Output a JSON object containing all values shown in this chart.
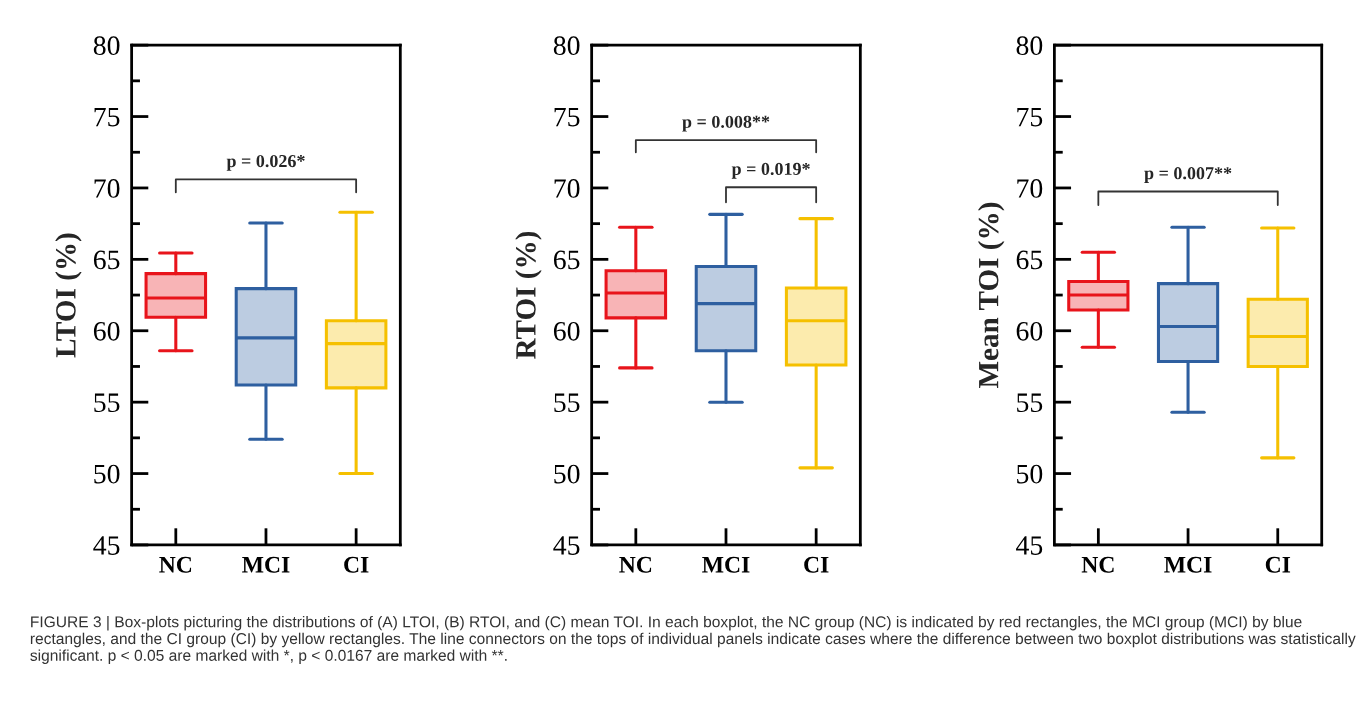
{
  "chart_data": [
    {
      "type": "box",
      "ylabel": "LTOI (%)",
      "categories": [
        "NC",
        "MCI",
        "CI"
      ],
      "colors": [
        "#e8141b",
        "#2e5fa0",
        "#f5c000"
      ],
      "boxes": [
        {
          "low": 58.6,
          "q1": 60.95,
          "median": 62.3,
          "q3": 64.0,
          "high": 65.45
        },
        {
          "low": 52.4,
          "q1": 56.2,
          "median": 59.5,
          "q3": 62.95,
          "high": 67.55
        },
        {
          "low": 50.0,
          "q1": 56.0,
          "median": 59.1,
          "q3": 60.7,
          "high": 68.3
        }
      ],
      "ylim": [
        45,
        80
      ],
      "yticks": [
        45,
        {
          "value": 47.5,
          "label": null
        },
        50,
        {
          "value": 52.5,
          "label": null
        },
        55,
        {
          "value": 57.5,
          "label": null
        },
        60,
        {
          "value": 62.5,
          "label": null
        },
        65,
        {
          "value": 67.5,
          "label": null
        },
        70,
        {
          "value": 72.5,
          "label": null
        },
        75,
        {
          "value": 77.5,
          "label": null
        },
        80
      ],
      "annotations": [
        "p = 0.026*"
      ]
    },
    {
      "type": "box",
      "ylabel": "RTOI (%)",
      "categories": [
        "NC",
        "MCI",
        "CI"
      ],
      "colors": [
        "#e8141b",
        "#2e5fa0",
        "#f5c000"
      ],
      "boxes": [
        {
          "low": 57.4,
          "q1": 60.9,
          "median": 62.65,
          "q3": 64.2,
          "high": 67.25
        },
        {
          "low": 55.0,
          "q1": 58.6,
          "median": 61.9,
          "q3": 64.5,
          "high": 68.15
        },
        {
          "low": 50.4,
          "q1": 57.6,
          "median": 60.7,
          "q3": 63.0,
          "high": 67.85
        }
      ],
      "ylim": [
        45,
        80
      ],
      "yticks": [
        45,
        {
          "value": 47.5,
          "label": null
        },
        50,
        {
          "value": 52.5,
          "label": null
        },
        55,
        {
          "value": 57.5,
          "label": null
        },
        60,
        {
          "value": 62.5,
          "label": null
        },
        65,
        {
          "value": 67.5,
          "label": null
        },
        70,
        {
          "value": 72.5,
          "label": null
        },
        75,
        {
          "value": 77.5,
          "label": null
        },
        80
      ],
      "annotations": [
        "p = 0.008**",
        "p = 0.019*"
      ]
    },
    {
      "type": "box",
      "ylabel": "Mean TOI (%)",
      "categories": [
        "NC",
        "MCI",
        "CI"
      ],
      "colors": [
        "#e8141b",
        "#2e5fa0",
        "#f5c000"
      ],
      "boxes": [
        {
          "low": 58.85,
          "q1": 61.45,
          "median": 62.5,
          "q3": 63.45,
          "high": 65.5
        },
        {
          "low": 54.3,
          "q1": 57.85,
          "median": 60.3,
          "q3": 63.3,
          "high": 67.25
        },
        {
          "low": 51.1,
          "q1": 57.5,
          "median": 59.6,
          "q3": 62.2,
          "high": 67.2
        }
      ],
      "ylim": [
        45,
        80
      ],
      "yticks": [
        45,
        {
          "value": 47.5,
          "label": null
        },
        50,
        {
          "value": 52.5,
          "label": null
        },
        55,
        {
          "value": 57.5,
          "label": null
        },
        60,
        {
          "value": 62.5,
          "label": null
        },
        65,
        {
          "value": 67.5,
          "label": null
        },
        70,
        {
          "value": 72.5,
          "label": null
        },
        75,
        {
          "value": 77.5,
          "label": null
        },
        80
      ],
      "annotations": [
        "p = 0.007**",
        "FIGURE 3 | Box-plots picturing the distributions of (A) LTOI, (B) RTOI, and (C) mean TOI. In each boxplot, the NC group (NC) is indicated by red rectangles, the MCI group (MCI) by blue rectangles, and the CI group (CI) by yellow rectangles. The line connectors on the tops of individual panels indicate cases where the difference between two boxplot distributions was statistically significant. p < 0.05 are marked with *, p < 0.0167 are marked with **."
      ]
    }
  ]
}
